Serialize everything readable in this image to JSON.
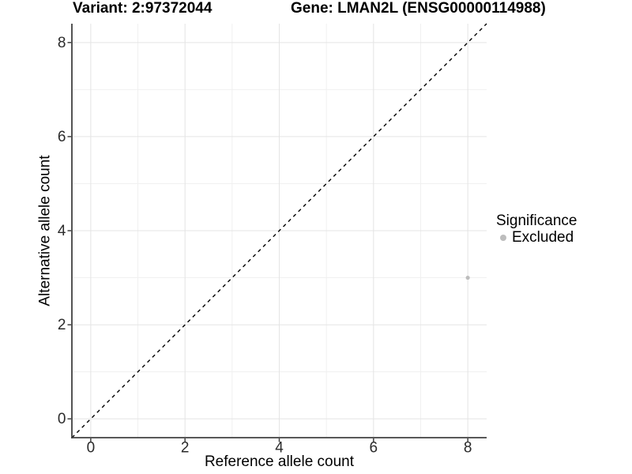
{
  "chart_data": {
    "type": "scatter",
    "title_left": "Variant: 2:97372044",
    "title_right": "Gene: LMAN2L (ENSG00000114988)",
    "xlabel": "Reference allele count",
    "ylabel": "Alternative allele count",
    "xlim": [
      -0.4,
      8.4
    ],
    "ylim": [
      -0.4,
      8.4
    ],
    "x_ticks": [
      0,
      2,
      4,
      6,
      8
    ],
    "y_ticks": [
      0,
      2,
      4,
      6,
      8
    ],
    "x_minor_ticks": [
      1,
      3,
      5,
      7
    ],
    "y_minor_ticks": [
      1,
      3,
      5,
      7
    ],
    "grid": "on",
    "identity_line": {
      "style": "dashed",
      "slope": 1,
      "intercept": 0,
      "color": "#000000"
    },
    "series": [
      {
        "name": "Excluded",
        "color": "#bdbdbd",
        "points": [
          [
            8,
            3
          ]
        ]
      }
    ],
    "legend": {
      "position": "right",
      "title": "Significance",
      "items": [
        {
          "label": "Excluded",
          "color": "#bdbdbd"
        }
      ]
    },
    "colors": {
      "background": "#ffffff",
      "grid_major": "#e4e4e4",
      "grid_minor": "#f0f0f0",
      "axis": "#404040",
      "tick_label": "#2b2b2b",
      "point": "#bdbdbd"
    }
  }
}
